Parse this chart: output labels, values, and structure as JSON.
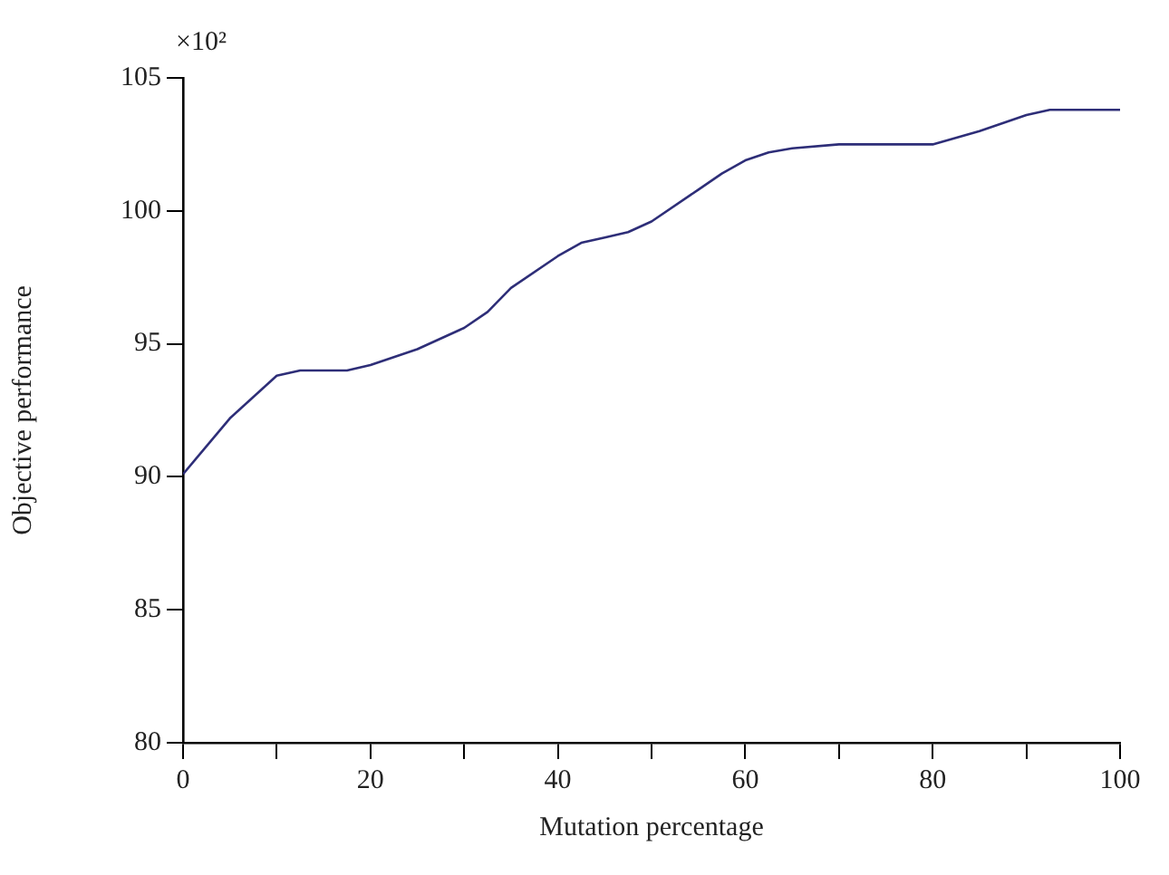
{
  "chart_data": {
    "type": "line",
    "xlabel": "Mutation percentage",
    "ylabel": "Objective performance",
    "annotations": [
      "×10²"
    ],
    "x": [
      0,
      5,
      10,
      12.5,
      17.5,
      20,
      25,
      30,
      32.5,
      35,
      40,
      42.5,
      45,
      47.5,
      50,
      55,
      57.5,
      60,
      62.5,
      65,
      70,
      80,
      85,
      90,
      92.5,
      100
    ],
    "series": [
      {
        "color": "#2e2e78",
        "values": [
          90.1,
          92.2,
          93.8,
          94.0,
          94.0,
          94.2,
          94.8,
          95.6,
          96.2,
          97.1,
          98.3,
          98.8,
          99.0,
          99.2,
          99.6,
          100.8,
          101.4,
          101.9,
          102.2,
          102.35,
          102.5,
          102.5,
          103.0,
          103.6,
          103.8,
          103.8
        ]
      }
    ],
    "xlim": [
      0,
      100
    ],
    "xticks": [
      0,
      {
        "value": 10,
        "label": null
      },
      20,
      {
        "value": 30,
        "label": null
      },
      40,
      {
        "value": 50,
        "label": null
      },
      60,
      {
        "value": 70,
        "label": null
      },
      80,
      {
        "value": 90,
        "label": null
      },
      100
    ],
    "ylim": [
      80,
      105
    ],
    "yticks": [
      80,
      85,
      90,
      95,
      100,
      105
    ],
    "grid": false,
    "legend": false,
    "marker": "none",
    "line_style": "solid"
  }
}
